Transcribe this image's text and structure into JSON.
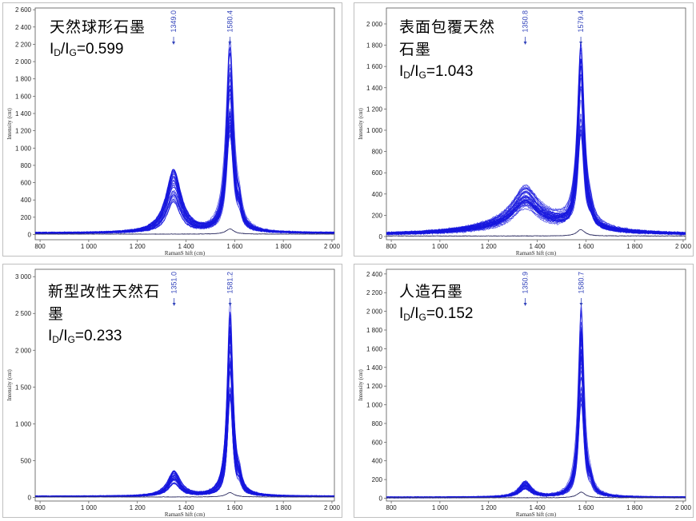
{
  "chart_data": [
    {
      "type": "line",
      "xlabel": "RamanS hift (cm)",
      "ylabel": "Intensity (cnt)",
      "xlim": [
        780,
        2010
      ],
      "ylim": [
        -60,
        2620
      ],
      "xticks": [
        800,
        1000,
        1200,
        1400,
        1600,
        1800,
        2000
      ],
      "xtick_labels": [
        "800",
        "1 000",
        "1 200",
        "1 400",
        "1 600",
        "1 800",
        "2 000"
      ],
      "yticks": [
        0,
        200,
        400,
        600,
        800,
        1000,
        1200,
        1400,
        1600,
        1800,
        2000,
        2200,
        2400,
        2600
      ],
      "ytick_labels": [
        "0",
        "200",
        "400",
        "600",
        "800",
        "1 000",
        "1 200",
        "1 400",
        "1 600",
        "1 800",
        "2 000",
        "2 200",
        "2 400",
        "2 600"
      ],
      "peak_labels": [
        {
          "x": 1349.0,
          "label": "1349.0"
        },
        {
          "x": 1580.4,
          "label": "1580.4"
        }
      ],
      "annotation": {
        "title": "天然球形石墨",
        "ratio_label": "I",
        "ratio_sub1": "D",
        "ratio_slash": "/I",
        "ratio_sub2": "G",
        "ratio_value": "=0.599"
      },
      "series_color": "#1515dd",
      "model": {
        "baseline": 20,
        "d": {
          "x": 1349,
          "height": 640,
          "width": 35
        },
        "g": {
          "x": 1580.4,
          "height": 2120,
          "width": 18
        },
        "d2": {
          "x": 1620,
          "height": 150,
          "width": 10
        },
        "broad": {
          "x": 1350,
          "height": 0,
          "width": 200
        }
      },
      "traces": 40
    },
    {
      "type": "line",
      "xlabel": "RamanS hift (cm)",
      "ylabel": "Intensity (cnt)",
      "xlim": [
        780,
        2010
      ],
      "ylim": [
        -30,
        2150
      ],
      "xticks": [
        800,
        1000,
        1200,
        1400,
        1600,
        1800,
        2000
      ],
      "xtick_labels": [
        "800",
        "1 000",
        "1 200",
        "1 400",
        "1 600",
        "1 800",
        "2 000"
      ],
      "yticks": [
        0,
        200,
        400,
        600,
        800,
        1000,
        1200,
        1400,
        1600,
        1800,
        2000
      ],
      "ytick_labels": [
        "0",
        "200",
        "400",
        "600",
        "800",
        "1 000",
        "1 200",
        "1 400",
        "1 600",
        "1 800",
        "2 000"
      ],
      "peak_labels": [
        {
          "x": 1350.8,
          "label": "1350.8"
        },
        {
          "x": 1579.4,
          "label": "1579.4"
        }
      ],
      "annotation": {
        "title": "表面包覆天然石墨",
        "ratio_label": "I",
        "ratio_sub1": "D",
        "ratio_slash": "/I",
        "ratio_sub2": "G",
        "ratio_value": "=1.043"
      },
      "series_color": "#1515dd",
      "model": {
        "baseline": 15,
        "d": {
          "x": 1350.8,
          "height": 280,
          "width": 60
        },
        "g": {
          "x": 1579.4,
          "height": 1650,
          "width": 16
        },
        "d2": {
          "x": 1620,
          "height": 60,
          "width": 12
        },
        "broad": {
          "x": 1380,
          "height": 120,
          "width": 230
        }
      },
      "traces": 40
    },
    {
      "type": "line",
      "xlabel": "RamanS hift (cm)",
      "ylabel": "Intensity (cnt)",
      "xlim": [
        780,
        2010
      ],
      "ylim": [
        -50,
        3100
      ],
      "xticks": [
        800,
        1000,
        1200,
        1400,
        1600,
        1800,
        2000
      ],
      "xtick_labels": [
        "800",
        "1 000",
        "1 200",
        "1 400",
        "1 600",
        "1 800",
        "2 000"
      ],
      "yticks": [
        0,
        500,
        1000,
        1500,
        2000,
        2500,
        3000
      ],
      "ytick_labels": [
        "0",
        "500",
        "1 000",
        "1 500",
        "2 000",
        "2 500",
        "3 000"
      ],
      "peak_labels": [
        {
          "x": 1351.0,
          "label": "1351.0"
        },
        {
          "x": 1581.2,
          "label": "1581.2"
        }
      ],
      "annotation": {
        "title": "新型改性天然石墨",
        "ratio_label": "I",
        "ratio_sub1": "D",
        "ratio_slash": "/I",
        "ratio_sub2": "G",
        "ratio_value": "=0.233"
      },
      "series_color": "#1515dd",
      "model": {
        "baseline": 15,
        "d": {
          "x": 1351,
          "height": 300,
          "width": 30
        },
        "g": {
          "x": 1581.2,
          "height": 2520,
          "width": 14
        },
        "d2": {
          "x": 1620,
          "height": 130,
          "width": 10
        },
        "broad": {
          "x": 1350,
          "height": 0,
          "width": 200
        }
      },
      "traces": 40
    },
    {
      "type": "line",
      "xlabel": "RamanS hift (cm)",
      "ylabel": "Intensity (cnt)",
      "xlim": [
        780,
        2010
      ],
      "ylim": [
        -30,
        2450
      ],
      "xticks": [
        800,
        1000,
        1200,
        1400,
        1600,
        1800,
        2000
      ],
      "xtick_labels": [
        "800",
        "1 000",
        "1 200",
        "1 400",
        "1 600",
        "1 800",
        "2 000"
      ],
      "yticks": [
        0,
        200,
        400,
        600,
        800,
        1000,
        1200,
        1400,
        1600,
        1800,
        2000,
        2200,
        2400
      ],
      "ytick_labels": [
        "0",
        "200",
        "400",
        "600",
        "800",
        "1 000",
        "1 200",
        "1 400",
        "1 600",
        "1 800",
        "2 000",
        "2 200",
        "2 400"
      ],
      "peak_labels": [
        {
          "x": 1350.9,
          "label": "1350.9"
        },
        {
          "x": 1580.7,
          "label": "1580.7"
        }
      ],
      "annotation": {
        "title": "人造石墨",
        "ratio_label": "I",
        "ratio_sub1": "D",
        "ratio_slash": "/I",
        "ratio_sub2": "G",
        "ratio_value": "=0.152"
      },
      "series_color": "#1515dd",
      "model": {
        "baseline": 10,
        "d": {
          "x": 1350.9,
          "height": 150,
          "width": 30
        },
        "g": {
          "x": 1580.7,
          "height": 1980,
          "width": 14
        },
        "d2": {
          "x": 1620,
          "height": 90,
          "width": 10
        },
        "broad": {
          "x": 1350,
          "height": 0,
          "width": 200
        }
      },
      "traces": 40
    }
  ]
}
